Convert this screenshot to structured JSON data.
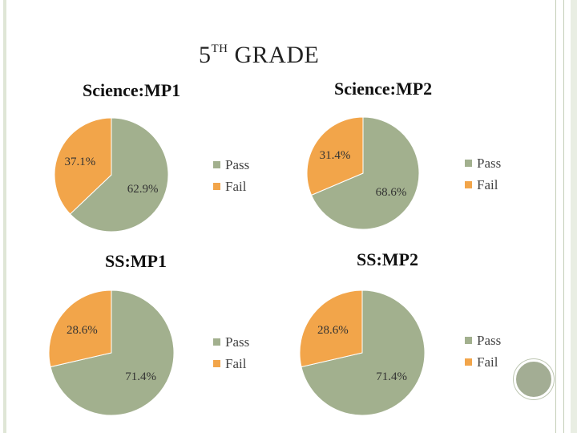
{
  "page": {
    "title_main": "5",
    "title_sup": "TH",
    "title_rest": " GRADE"
  },
  "colors": {
    "pass": "#a2b08e",
    "fail": "#f2a54a",
    "frame": "#dfe6d6",
    "accent_circle": "#a3ad94"
  },
  "chart_data": [
    {
      "type": "pie",
      "title": "Science:MP1",
      "series": [
        {
          "name": "Pass",
          "value": 62.9,
          "label": "62.9%"
        },
        {
          "name": "Fail",
          "value": 37.1,
          "label": "37.1%"
        }
      ],
      "legend": [
        "Pass",
        "Fail"
      ],
      "legend_position": "right"
    },
    {
      "type": "pie",
      "title": "Science:MP2",
      "series": [
        {
          "name": "Pass",
          "value": 68.6,
          "label": "68.6%"
        },
        {
          "name": "Fail",
          "value": 31.4,
          "label": "31.4%"
        }
      ],
      "legend": [
        "Pass",
        "Fail"
      ],
      "legend_position": "right"
    },
    {
      "type": "pie",
      "title": "SS:MP1",
      "series": [
        {
          "name": "Pass",
          "value": 71.4,
          "label": "71.4%"
        },
        {
          "name": "Fail",
          "value": 28.6,
          "label": "28.6%"
        }
      ],
      "legend": [
        "Pass",
        "Fail"
      ],
      "legend_position": "right"
    },
    {
      "type": "pie",
      "title": "SS:MP2",
      "series": [
        {
          "name": "Pass",
          "value": 71.4,
          "label": "71.4%"
        },
        {
          "name": "Fail",
          "value": 28.6,
          "label": "28.6%"
        }
      ],
      "legend": [
        "Pass",
        "Fail"
      ],
      "legend_position": "right"
    }
  ]
}
